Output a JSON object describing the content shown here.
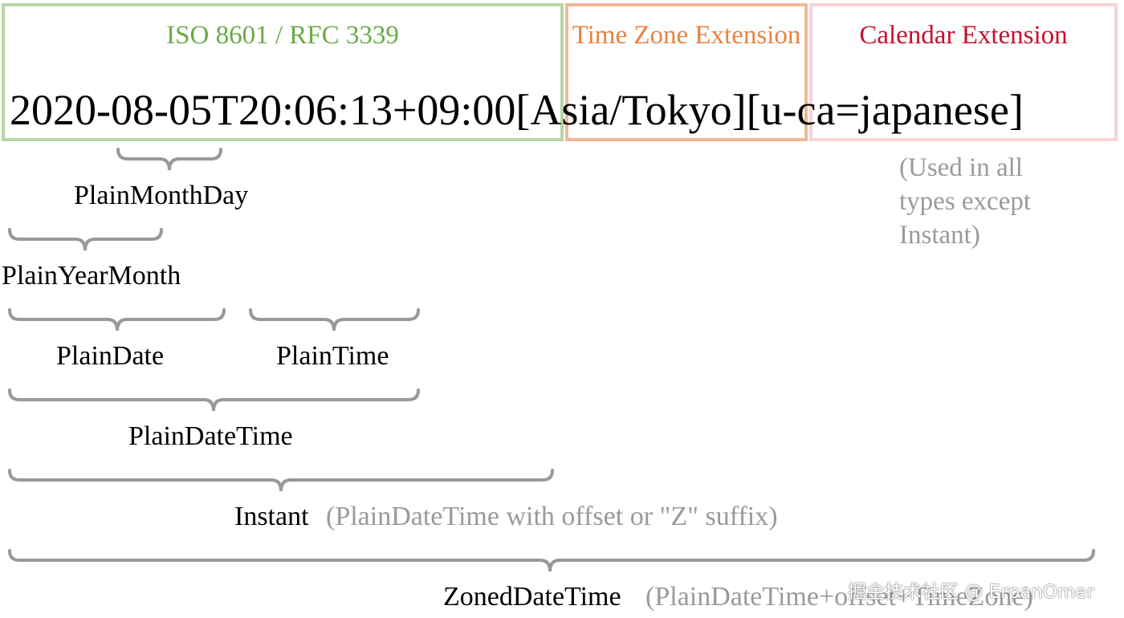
{
  "sections": {
    "iso": "ISO 8601 / RFC 3339",
    "time_zone": "Time Zone Extension",
    "calendar": "Calendar Extension"
  },
  "example": "2020-08-05T20:06:13+09:00[Asia/Tokyo][u-ca=japanese]",
  "calendar_note": "(Used in all types except Instant)",
  "types": {
    "plain_month_day": "PlainMonthDay",
    "plain_year_month": "PlainYearMonth",
    "plain_date": "PlainDate",
    "plain_time": "PlainTime",
    "plain_date_time": "PlainDateTime",
    "instant": "Instant",
    "instant_note": "(PlainDateTime with offset or \"Z\" suffix)",
    "zoned_date_time": "ZonedDateTime",
    "zoned_note": "(PlainDateTime+offset+TimeZone)"
  },
  "colors": {
    "iso": "#6aab48",
    "time_zone": "#e8823f",
    "calendar": "#c8102e",
    "brace": "#999999",
    "note": "#9a9a9a"
  },
  "watermark": "掘金技术社区 @ ErpanOmer"
}
